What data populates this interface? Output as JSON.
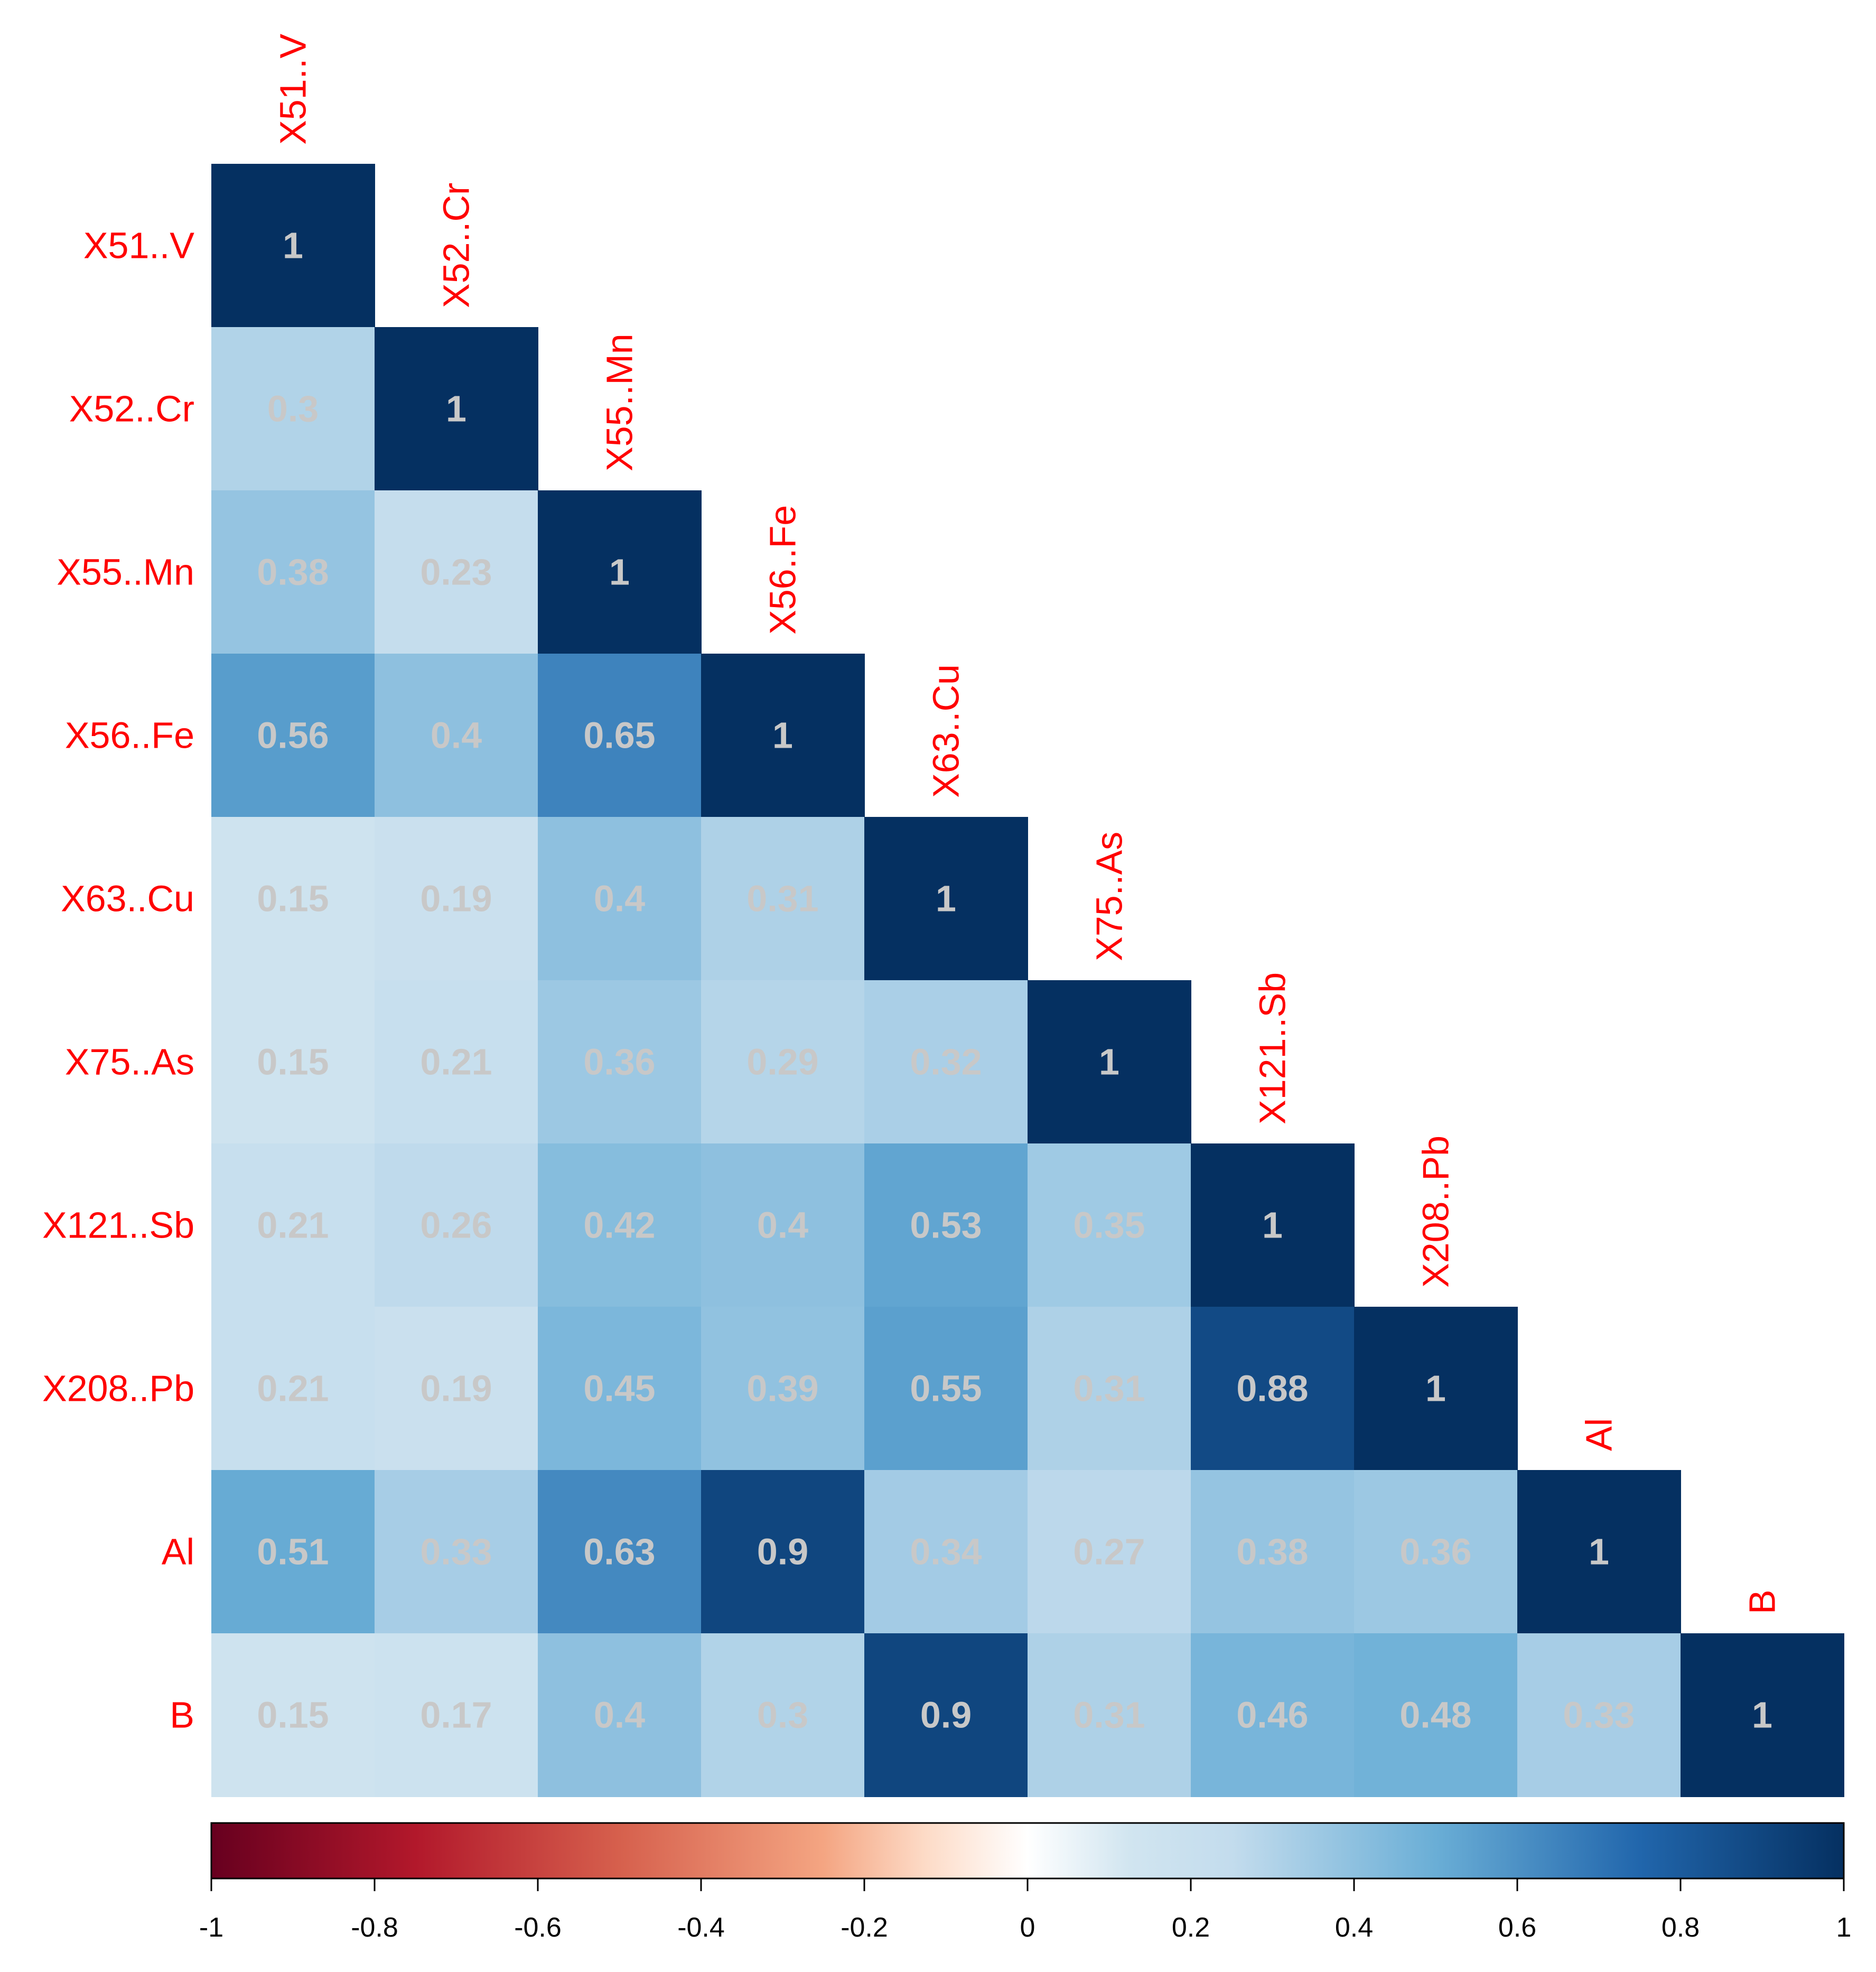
{
  "chart_data": {
    "type": "heatmap",
    "variables": [
      "X51..V",
      "X52..Cr",
      "X55..Mn",
      "X56..Fe",
      "X63..Cu",
      "X75..As",
      "X121..Sb",
      "X208..Pb",
      "Al",
      "B"
    ],
    "matrix": [
      [
        1
      ],
      [
        0.3,
        1
      ],
      [
        0.38,
        0.23,
        1
      ],
      [
        0.56,
        0.4,
        0.65,
        1
      ],
      [
        0.15,
        0.19,
        0.4,
        0.31,
        1
      ],
      [
        0.15,
        0.21,
        0.36,
        0.29,
        0.32,
        1
      ],
      [
        0.21,
        0.26,
        0.42,
        0.4,
        0.53,
        0.35,
        1
      ],
      [
        0.21,
        0.19,
        0.45,
        0.39,
        0.55,
        0.31,
        0.88,
        1
      ],
      [
        0.51,
        0.33,
        0.63,
        0.9,
        0.34,
        0.27,
        0.38,
        0.36,
        1
      ],
      [
        0.15,
        0.17,
        0.4,
        0.3,
        0.9,
        0.31,
        0.46,
        0.48,
        0.33,
        1
      ]
    ],
    "triangle": "lower",
    "color_scale": {
      "range": [
        -1,
        1
      ],
      "stops": [
        {
          "value": -1,
          "color": "#67001f"
        },
        {
          "value": -0.75,
          "color": "#b2182b"
        },
        {
          "value": -0.5,
          "color": "#d6604d"
        },
        {
          "value": -0.25,
          "color": "#f4a582"
        },
        {
          "value": -0.125,
          "color": "#fddbc7"
        },
        {
          "value": 0,
          "color": "#ffffff"
        },
        {
          "value": 0.125,
          "color": "#d1e5f0"
        },
        {
          "value": 0.25,
          "color": "#c3dced"
        },
        {
          "value": 0.5,
          "color": "#6aaed6"
        },
        {
          "value": 0.75,
          "color": "#2166ac"
        },
        {
          "value": 1,
          "color": "#053061"
        }
      ],
      "ticks": [
        "-1",
        "-0.8",
        "-0.6",
        "-0.4",
        "-0.2",
        "0",
        "0.2",
        "0.4",
        "0.6",
        "0.8",
        "1"
      ],
      "placement": "bottom"
    },
    "label_color": "#ff0000",
    "value_label_color": "#c8c8c8"
  }
}
